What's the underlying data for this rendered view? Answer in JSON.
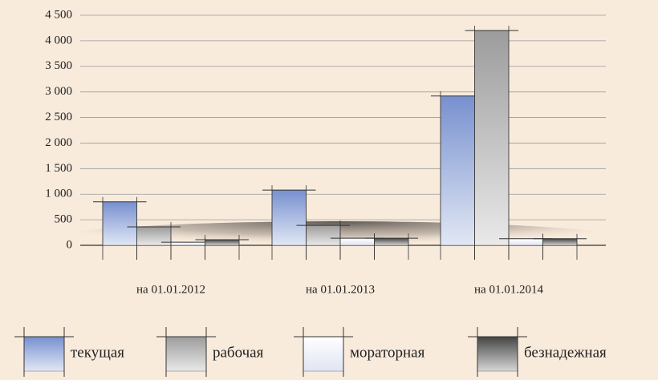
{
  "chart_data": {
    "type": "bar",
    "categories": [
      "на 01.01.2012",
      "на 01.01.2013",
      "на 01.01.2014"
    ],
    "series": [
      {
        "name": "текущая",
        "color": "#7790cf",
        "values": [
          850,
          1080,
          2920
        ]
      },
      {
        "name": "рабочая",
        "color": "#9c9c9c",
        "values": [
          360,
          390,
          4200
        ]
      },
      {
        "name": "мораторная",
        "color": "#ffffff",
        "values": [
          60,
          140,
          130
        ]
      },
      {
        "name": "безнадежная",
        "color": "#454545",
        "values": [
          110,
          140,
          130
        ]
      }
    ],
    "ylim": [
      0,
      4500
    ],
    "yticks": [
      0,
      500,
      {
        "value": 1000,
        "label": "1 000"
      },
      {
        "value": 1500,
        "label": "1 500"
      },
      {
        "value": 2000,
        "label": "2 000"
      },
      {
        "value": 2500,
        "label": "2 500"
      },
      {
        "value": 3000,
        "label": "3 000"
      },
      {
        "value": 3500,
        "label": "3 500"
      },
      {
        "value": 4000,
        "label": "4 000"
      },
      {
        "value": 4500,
        "label": "4 500"
      }
    ],
    "grid": true
  }
}
